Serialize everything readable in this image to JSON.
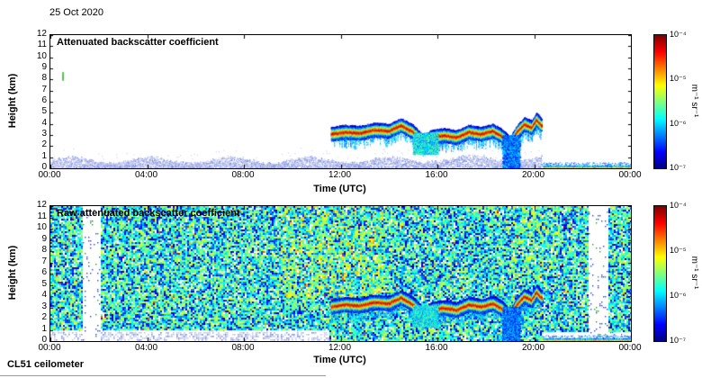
{
  "header": {
    "date": "25 Oct 2020"
  },
  "footer": {
    "instrument": "CL51 ceilometer"
  },
  "colorbar": {
    "ticks": [
      "10⁻⁴",
      "10⁻⁵",
      "10⁻⁶",
      "10⁻⁷"
    ],
    "unit": "m⁻¹ sr⁻¹",
    "scale": "log10",
    "value_range": [
      1e-07,
      0.0001
    ],
    "colormap": "jet"
  },
  "chart_data": [
    {
      "type": "heatmap",
      "title": "Attenuated backscatter coefficient",
      "xlabel": "Time (UTC)",
      "ylabel": "Height (km)",
      "x_ticks": [
        "00:00",
        "04:00",
        "08:00",
        "12:00",
        "16:00",
        "20:00",
        "00:00"
      ],
      "x_tick_hours": [
        0,
        4,
        8,
        12,
        16,
        20,
        24
      ],
      "y_ticks": [
        "0",
        "1",
        "2",
        "3",
        "4",
        "5",
        "6",
        "7",
        "8",
        "9",
        "10",
        "11",
        "12"
      ],
      "xlim_hours": [
        0,
        24
      ],
      "ylim_km": [
        0,
        12
      ],
      "value_log10_range": [
        -7,
        -4
      ],
      "features": {
        "boundary_layer": {
          "hours": [
            0,
            20.3
          ],
          "top_km_range": [
            0.5,
            1.1
          ],
          "log10_value": -6.9
        },
        "elevated_spike": {
          "hour": 0.5,
          "km_range": [
            8.0,
            8.7
          ],
          "log10_value": -5.8
        },
        "cloud_layer": {
          "hours": [
            11.6,
            20.3
          ],
          "log10_value": -4.2,
          "base_profile_km": [
            [
              11.6,
              3.1
            ],
            [
              12.2,
              3.3
            ],
            [
              12.8,
              3.2
            ],
            [
              13.4,
              3.5
            ],
            [
              14.0,
              3.4
            ],
            [
              14.5,
              3.9
            ],
            [
              15.0,
              3.3
            ],
            [
              15.4,
              2.4
            ],
            [
              15.8,
              2.9
            ],
            [
              16.3,
              3.0
            ],
            [
              16.8,
              2.8
            ],
            [
              17.3,
              3.3
            ],
            [
              17.8,
              3.1
            ],
            [
              18.3,
              3.4
            ],
            [
              18.7,
              2.9
            ],
            [
              19.0,
              2.2
            ],
            [
              19.3,
              3.3
            ],
            [
              19.6,
              4.0
            ],
            [
              19.9,
              3.7
            ],
            [
              20.1,
              4.4
            ],
            [
              20.3,
              3.9
            ]
          ]
        },
        "virga": [
          {
            "hours": [
              15.0,
              16.0
            ],
            "km_range": [
              1.3,
              3.2
            ]
          },
          {
            "hours": [
              18.7,
              19.4
            ],
            "km_range": [
              0.0,
              3.0
            ]
          }
        ],
        "surface_signal": {
          "hours": [
            20.35,
            24
          ],
          "top_km": 0.25,
          "log10_value": -4.5
        }
      }
    },
    {
      "type": "heatmap",
      "title": "Raw attenuated backscatter coefficient",
      "xlabel": "Time (UTC)",
      "ylabel": "Height (km)",
      "x_ticks": [
        "00:00",
        "04:00",
        "08:00",
        "12:00",
        "16:00",
        "20:00",
        "00:00"
      ],
      "x_tick_hours": [
        0,
        4,
        8,
        12,
        16,
        20,
        24
      ],
      "y_ticks": [
        "0",
        "1",
        "2",
        "3",
        "4",
        "5",
        "6",
        "7",
        "8",
        "9",
        "10",
        "11",
        "12"
      ],
      "xlim_hours": [
        0,
        24
      ],
      "ylim_km": [
        0,
        12
      ],
      "value_log10_range": [
        -7,
        -4
      ],
      "features": {
        "noise_background": {
          "log10_min": -7,
          "log10_span": 1.8
        },
        "attenuated_columns": [
          {
            "hours": [
              1.28,
              2.02
            ]
          },
          {
            "hours": [
              22.2,
              23.05
            ]
          }
        ],
        "enhanced_patches": [
          {
            "hours": [
              9.5,
              13.8
            ],
            "km_min": 4,
            "log10_boost": 0.4
          },
          {
            "hours": [
              19.0,
              21.0
            ],
            "km_min": 6,
            "log10_boost": 0.25
          }
        ],
        "boundary_layer": {
          "hours": [
            0,
            11.5
          ],
          "top_km_range": [
            0.5,
            1.0
          ]
        },
        "cloud_layer": {
          "hours": [
            11.6,
            20.3
          ],
          "log10_value": -4.2,
          "base_profile_km": [
            [
              11.6,
              3.1
            ],
            [
              12.2,
              3.3
            ],
            [
              12.8,
              3.2
            ],
            [
              13.4,
              3.5
            ],
            [
              14.0,
              3.4
            ],
            [
              14.5,
              3.9
            ],
            [
              15.0,
              3.3
            ],
            [
              15.4,
              2.4
            ],
            [
              15.8,
              2.9
            ],
            [
              16.3,
              3.0
            ],
            [
              16.8,
              2.8
            ],
            [
              17.3,
              3.3
            ],
            [
              17.8,
              3.1
            ],
            [
              18.3,
              3.4
            ],
            [
              18.7,
              2.9
            ],
            [
              19.0,
              2.2
            ],
            [
              19.3,
              3.3
            ],
            [
              19.6,
              4.0
            ],
            [
              19.9,
              3.7
            ],
            [
              20.1,
              4.4
            ],
            [
              20.3,
              3.9
            ]
          ]
        },
        "virga": [
          {
            "hours": [
              15.0,
              16.0
            ],
            "km_range": [
              1.3,
              3.2
            ]
          },
          {
            "hours": [
              18.7,
              19.4
            ],
            "km_range": [
              0.0,
              3.0
            ]
          }
        ],
        "surface_signal": {
          "hours": [
            20.35,
            24
          ],
          "top_km": 0.25,
          "log10_value": -4.5
        }
      }
    }
  ]
}
